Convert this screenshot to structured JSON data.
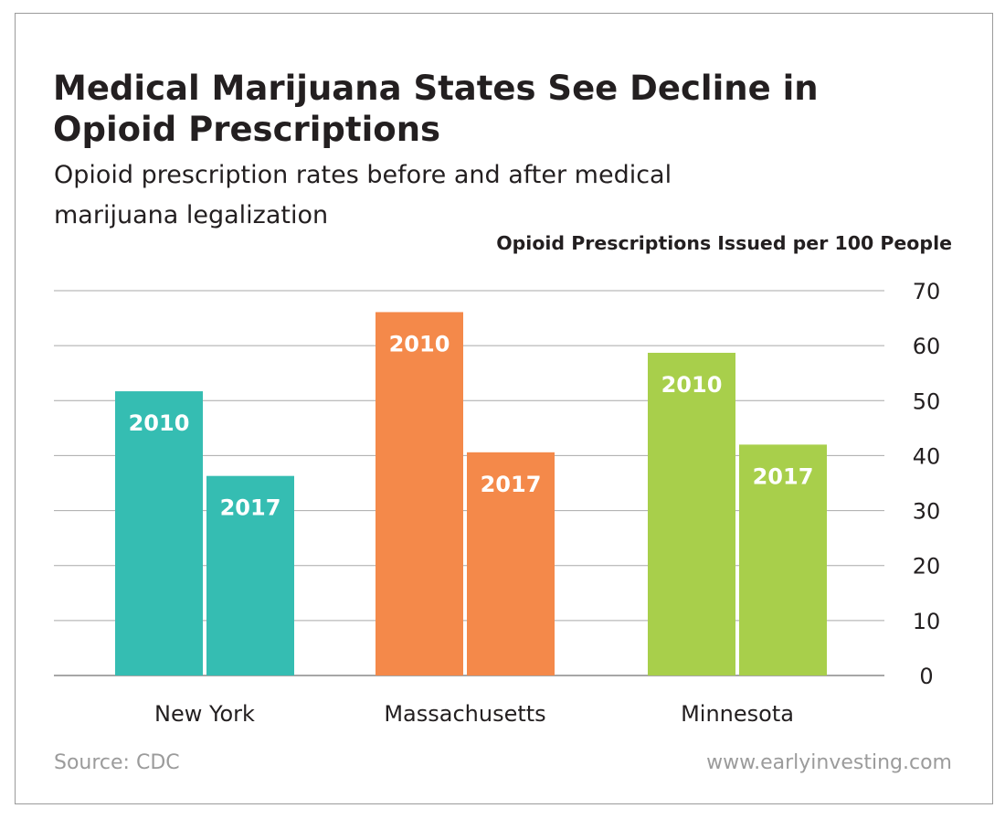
{
  "title": "Medical Marijuana States See Decline in Opioid Prescriptions",
  "subtitle": "Opioid prescription rates before and after medical marijuana legalization",
  "source": "Source: CDC",
  "website": "www.earlyinvesting.com",
  "chart_data": {
    "type": "bar",
    "title": "Medical Marijuana States See Decline in Opioid Prescriptions",
    "subtitle": "Opioid prescription rates before and after medical marijuana legalization",
    "xlabel": "",
    "ylabel": "Opioid Prescriptions Issued per 100 People",
    "y_axis_side": "right",
    "ylim": [
      0,
      70
    ],
    "yticks": [
      0,
      10,
      20,
      30,
      40,
      50,
      60,
      70
    ],
    "grid": true,
    "legend": "none",
    "categories": [
      "New York",
      "Massachusetts",
      "Minnesota"
    ],
    "category_colors": [
      "#35bdb2",
      "#f4894a",
      "#a8cf4b"
    ],
    "series": [
      {
        "name": "2010",
        "values": [
          51.7,
          66.1,
          58.7
        ]
      },
      {
        "name": "2017",
        "values": [
          36.3,
          40.6,
          42.0
        ]
      }
    ]
  }
}
